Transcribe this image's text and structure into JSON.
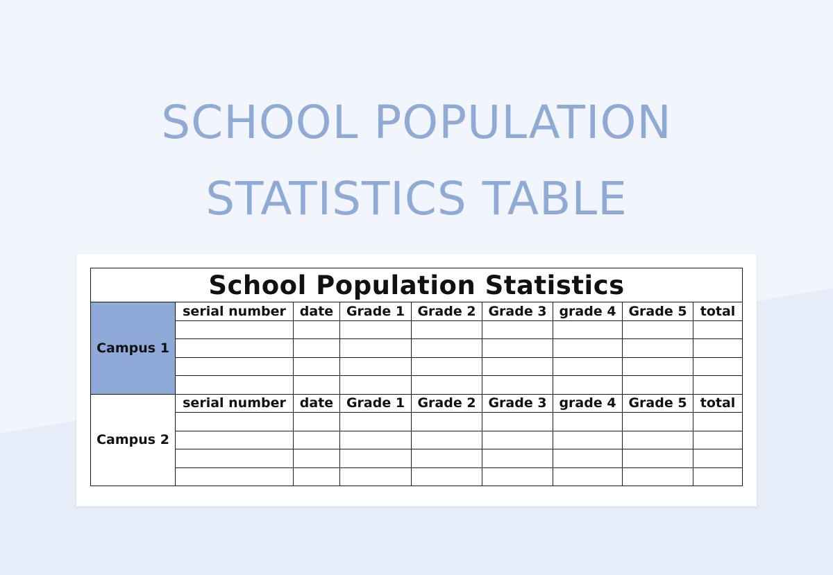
{
  "page": {
    "title_line1": "SCHOOL POPULATION",
    "title_line2": "STATISTICS TABLE"
  },
  "colors": {
    "background": "#eef3fb",
    "title": "#8eaad6",
    "campus1_fill": "#8eaad9",
    "border": "#1a1a1a"
  },
  "sheet": {
    "title": "School Population Statistics",
    "columns": [
      "serial number",
      "date",
      "Grade 1",
      "Grade 2",
      "Grade 3",
      "grade 4",
      "Grade 5",
      "total"
    ],
    "campuses": [
      {
        "name": "Campus 1",
        "header": [
          "serial number",
          "date",
          "Grade 1",
          "Grade 2",
          "Grade 3",
          "grade 4",
          "Grade 5",
          "total"
        ],
        "rows": [
          [
            "",
            "",
            "",
            "",
            "",
            "",
            "",
            ""
          ],
          [
            "",
            "",
            "",
            "",
            "",
            "",
            "",
            ""
          ],
          [
            "",
            "",
            "",
            "",
            "",
            "",
            "",
            ""
          ],
          [
            "",
            "",
            "",
            "",
            "",
            "",
            "",
            ""
          ]
        ]
      },
      {
        "name": "Campus 2",
        "header": [
          "serial number",
          "date",
          "Grade 1",
          "Grade 2",
          "Grade 3",
          "grade 4",
          "Grade 5",
          "total"
        ],
        "rows": [
          [
            "",
            "",
            "",
            "",
            "",
            "",
            "",
            ""
          ],
          [
            "",
            "",
            "",
            "",
            "",
            "",
            "",
            ""
          ],
          [
            "",
            "",
            "",
            "",
            "",
            "",
            "",
            ""
          ],
          [
            "",
            "",
            "",
            "",
            "",
            "",
            "",
            ""
          ]
        ]
      }
    ]
  }
}
